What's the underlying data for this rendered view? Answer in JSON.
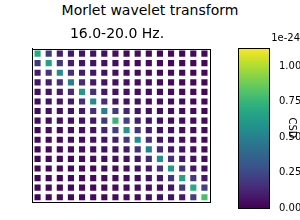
{
  "chart_data": {
    "type": "heatmap",
    "suptitle": "Morlet wavelet transform",
    "title": "16.0-20.0 Hz.",
    "tick_labels": false,
    "grid": false,
    "cells": [
      [
        0.7,
        0.2,
        0.1,
        0.08,
        0.06,
        0.05,
        0.04,
        0.05,
        0.03,
        0.04,
        0.03,
        0.02,
        0.03,
        0.02,
        0.03,
        0.02
      ],
      [
        0.2,
        0.65,
        0.18,
        0.1,
        0.07,
        0.06,
        0.05,
        0.04,
        0.04,
        0.03,
        0.03,
        0.03,
        0.02,
        0.03,
        0.02,
        0.02
      ],
      [
        0.1,
        0.18,
        0.55,
        0.15,
        0.09,
        0.07,
        0.05,
        0.05,
        0.04,
        0.04,
        0.03,
        0.03,
        0.03,
        0.02,
        0.02,
        0.03
      ],
      [
        0.08,
        0.1,
        0.15,
        0.5,
        0.14,
        0.08,
        0.06,
        0.05,
        0.05,
        0.04,
        0.04,
        0.03,
        0.03,
        0.03,
        0.02,
        0.02
      ],
      [
        0.06,
        0.07,
        0.09,
        0.14,
        0.6,
        0.16,
        0.08,
        0.06,
        0.05,
        0.04,
        0.04,
        0.03,
        0.03,
        0.03,
        0.03,
        0.02
      ],
      [
        0.05,
        0.06,
        0.07,
        0.08,
        0.16,
        0.55,
        0.15,
        0.07,
        0.05,
        0.05,
        0.04,
        0.04,
        0.03,
        0.03,
        0.02,
        0.03
      ],
      [
        0.04,
        0.05,
        0.05,
        0.06,
        0.08,
        0.15,
        0.5,
        0.2,
        0.12,
        0.06,
        0.05,
        0.04,
        0.04,
        0.03,
        0.03,
        0.02
      ],
      [
        0.05,
        0.04,
        0.05,
        0.05,
        0.06,
        0.07,
        0.2,
        0.75,
        0.22,
        0.1,
        0.06,
        0.05,
        0.04,
        0.04,
        0.03,
        0.03
      ],
      [
        0.03,
        0.04,
        0.04,
        0.05,
        0.05,
        0.05,
        0.12,
        0.22,
        0.6,
        0.18,
        0.08,
        0.05,
        0.05,
        0.04,
        0.03,
        0.03
      ],
      [
        0.04,
        0.03,
        0.04,
        0.04,
        0.04,
        0.05,
        0.06,
        0.1,
        0.18,
        0.55,
        0.15,
        0.07,
        0.05,
        0.04,
        0.04,
        0.03
      ],
      [
        0.03,
        0.03,
        0.03,
        0.04,
        0.04,
        0.04,
        0.05,
        0.06,
        0.08,
        0.15,
        0.5,
        0.14,
        0.08,
        0.06,
        0.04,
        0.04
      ],
      [
        0.02,
        0.03,
        0.03,
        0.03,
        0.03,
        0.04,
        0.04,
        0.05,
        0.05,
        0.07,
        0.14,
        0.55,
        0.16,
        0.08,
        0.05,
        0.04
      ],
      [
        0.03,
        0.02,
        0.03,
        0.03,
        0.03,
        0.03,
        0.04,
        0.04,
        0.05,
        0.05,
        0.08,
        0.16,
        0.6,
        0.18,
        0.07,
        0.05
      ],
      [
        0.02,
        0.03,
        0.02,
        0.03,
        0.03,
        0.03,
        0.03,
        0.04,
        0.04,
        0.04,
        0.06,
        0.08,
        0.18,
        0.65,
        0.2,
        0.08
      ],
      [
        0.03,
        0.02,
        0.02,
        0.02,
        0.03,
        0.02,
        0.03,
        0.03,
        0.03,
        0.04,
        0.04,
        0.05,
        0.07,
        0.2,
        0.7,
        0.22
      ],
      [
        0.02,
        0.02,
        0.03,
        0.02,
        0.02,
        0.03,
        0.02,
        0.03,
        0.03,
        0.03,
        0.04,
        0.04,
        0.05,
        0.08,
        0.22,
        0.8
      ]
    ],
    "colorbar": {
      "label": "CSD",
      "offset_text": "1e-24",
      "range": [
        0,
        1.13
      ],
      "ticks": [
        {
          "value": 0,
          "label": "0.00"
        },
        {
          "value": 0.25,
          "label": "0.25"
        },
        {
          "value": 0.5,
          "label": "0.50"
        },
        {
          "value": 0.75,
          "label": "0.75"
        },
        {
          "value": 1,
          "label": "1.00"
        }
      ]
    }
  }
}
